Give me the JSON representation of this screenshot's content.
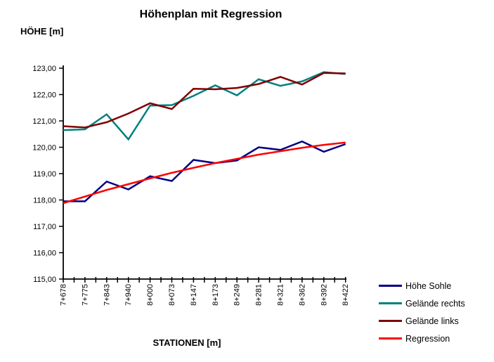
{
  "title": "Höhenplan mit Regression",
  "y_axis_title": "HÖHE [m]",
  "x_axis_title": "STATIONEN [m]",
  "chart_data": {
    "type": "line",
    "title": "Höhenplan mit Regression",
    "xlabel": "STATIONEN [m]",
    "ylabel": "HÖHE [m]",
    "ylim": [
      115,
      123
    ],
    "y_tick_step": 1,
    "y_tick_labels": [
      "115,00",
      "116,00",
      "117,00",
      "118,00",
      "119,00",
      "120,00",
      "121,00",
      "122,00",
      "123,00"
    ],
    "grid": false,
    "legend_position": "right",
    "categories": [
      "7+678",
      "7+775",
      "7+843",
      "7+940",
      "8+000",
      "8+073",
      "8+147",
      "8+173",
      "8+249",
      "8+281",
      "8+321",
      "8+362",
      "8+392",
      "8+422"
    ],
    "series": [
      {
        "name": "Höhe Sohle",
        "color": "#000080",
        "values": [
          117.95,
          117.95,
          118.7,
          118.4,
          118.9,
          118.72,
          119.52,
          119.4,
          119.5,
          120.0,
          119.9,
          120.22,
          119.83,
          120.12
        ]
      },
      {
        "name": "Gelände rechts",
        "color": "#008080",
        "values": [
          120.65,
          120.68,
          121.25,
          120.3,
          121.58,
          121.6,
          121.95,
          122.35,
          121.97,
          122.58,
          122.33,
          122.5,
          122.85,
          122.78
        ]
      },
      {
        "name": "Gelände links",
        "color": "#800000",
        "values": [
          120.8,
          120.75,
          120.95,
          121.28,
          121.67,
          121.45,
          122.22,
          122.2,
          122.25,
          122.4,
          122.67,
          122.38,
          122.82,
          122.8
        ]
      },
      {
        "name": "Regression",
        "color": "#FF0000",
        "values": [
          117.88,
          118.13,
          118.38,
          118.6,
          118.82,
          119.03,
          119.22,
          119.4,
          119.56,
          119.72,
          119.85,
          119.98,
          120.09,
          120.18
        ]
      }
    ]
  }
}
